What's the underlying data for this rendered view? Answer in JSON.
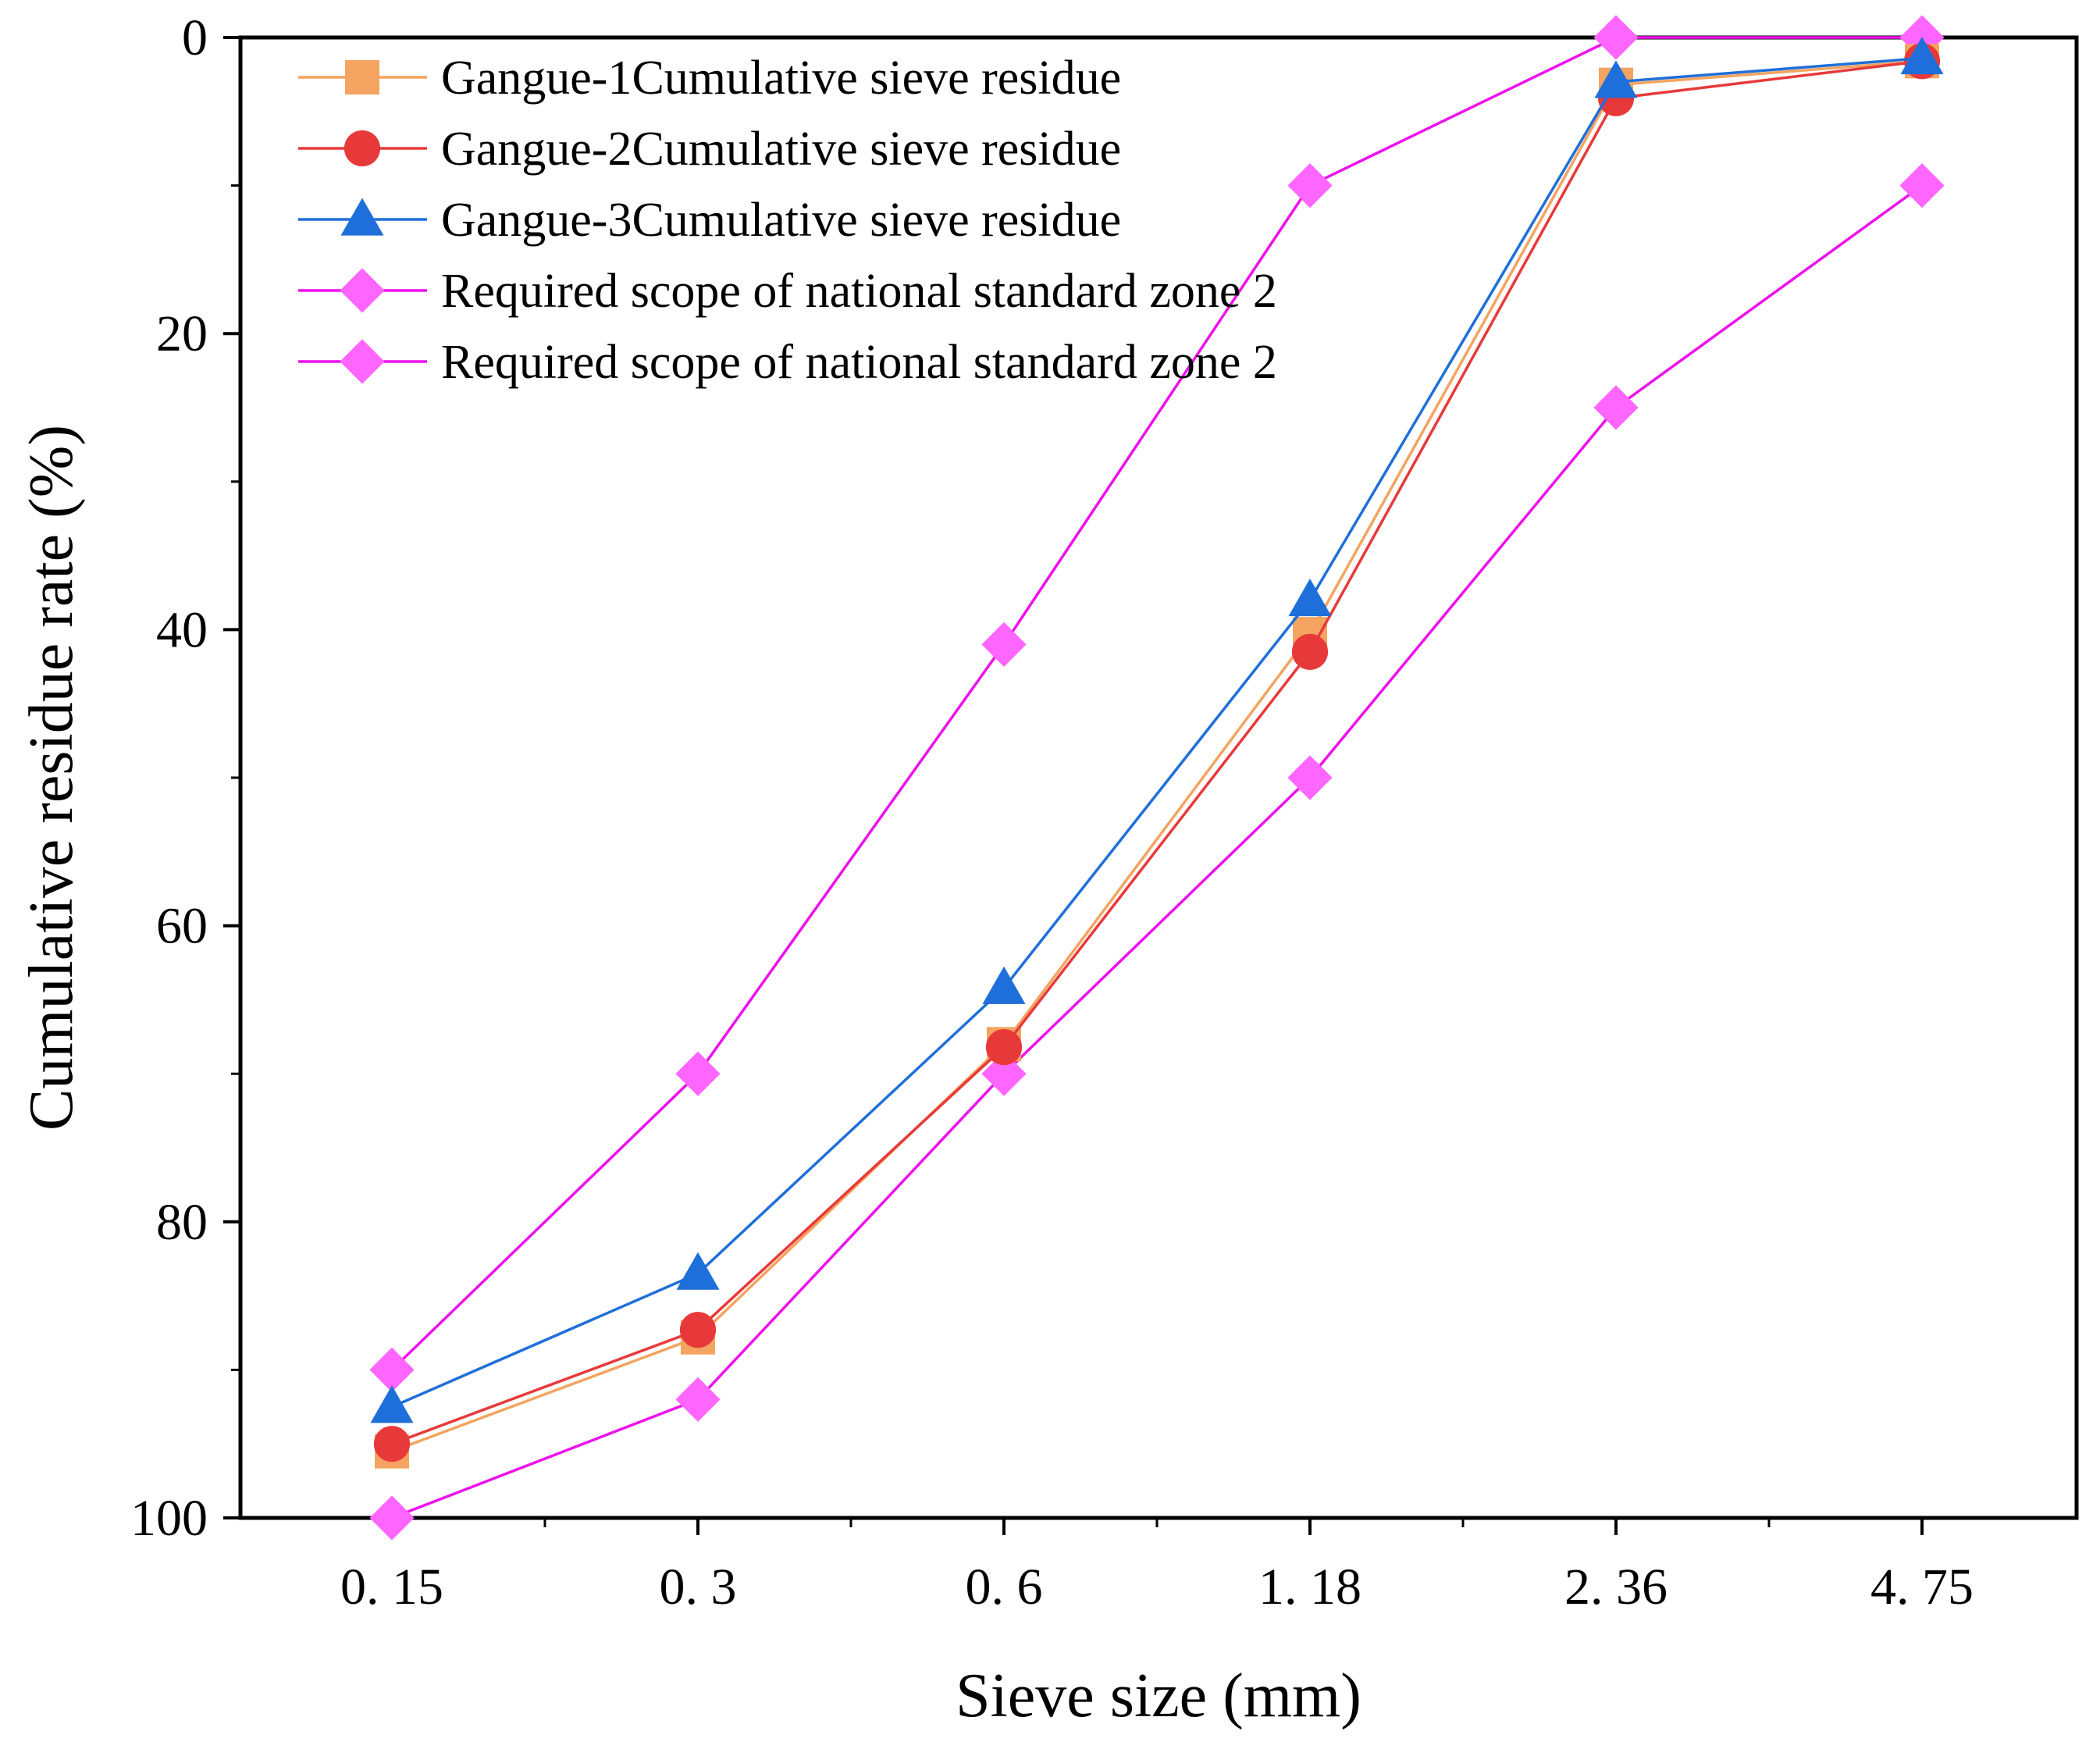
{
  "chart_data": {
    "type": "line",
    "title": "",
    "xlabel": "Sieve size (mm)",
    "ylabel": "Cumulative residue rate (%)",
    "categories": [
      "0. 15",
      "0. 3",
      "0. 6",
      "1. 18",
      "2. 36",
      "4. 75"
    ],
    "ylim": [
      0,
      100
    ],
    "y_inverted": true,
    "yticks": [
      0,
      20,
      40,
      60,
      80,
      100
    ],
    "legend_position": "top-left",
    "grid": false,
    "series": [
      {
        "name": "Gangue-1Cumulative sieve residue",
        "marker": "square",
        "color": "#F4A460",
        "values": [
          95.5,
          87.8,
          68.0,
          40.3,
          3.2,
          1.6
        ]
      },
      {
        "name": "Gangue-2Cumulative sieve residue",
        "marker": "circle",
        "color": "#E8393A",
        "values": [
          95.0,
          87.3,
          68.2,
          41.5,
          4.1,
          1.6
        ]
      },
      {
        "name": "Gangue-3Cumulative sieve residue",
        "marker": "triangle",
        "color": "#1E6FD9",
        "values": [
          92.5,
          83.5,
          64.2,
          38.0,
          3.0,
          1.4
        ]
      },
      {
        "name": "Required scope of national standard zone 2",
        "marker": "diamond",
        "color": "#FF66FF",
        "line_color": "#EE11EE",
        "values": [
          90,
          70,
          41,
          10,
          0,
          0
        ]
      },
      {
        "name": "Required scope of national standard zone 2",
        "marker": "diamond",
        "color": "#FF66FF",
        "line_color": "#EE11EE",
        "values": [
          100,
          92,
          70,
          50,
          25,
          10
        ]
      }
    ]
  }
}
